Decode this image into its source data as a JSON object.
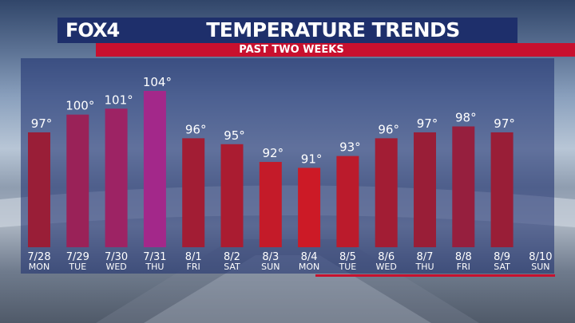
{
  "header": {
    "logo": "FOX4",
    "title": "TEMPERATURE TRENDS",
    "subtitle": "PAST TWO WEEKS"
  },
  "colors": {
    "header_bg": "#1e2f6b",
    "subtitle_bg": "#c8102e",
    "bar_heat_low": "#cc1a26",
    "bar_heat_mid": "#951e38",
    "bar_heat_high": "#a3288a"
  },
  "chart_data": {
    "type": "bar",
    "title": "TEMPERATURE TRENDS",
    "subtitle": "PAST TWO WEEKS",
    "categories": [
      "7/28",
      "7/29",
      "7/30",
      "7/31",
      "8/1",
      "8/2",
      "8/3",
      "8/4",
      "8/5",
      "8/6",
      "8/7",
      "8/8",
      "8/9",
      "8/10"
    ],
    "days": [
      "MON",
      "TUE",
      "WED",
      "THU",
      "FRI",
      "SAT",
      "SUN",
      "MON",
      "TUE",
      "WED",
      "THU",
      "FRI",
      "SAT",
      "SUN"
    ],
    "values": [
      97,
      100,
      101,
      104,
      96,
      95,
      92,
      91,
      93,
      96,
      97,
      98,
      97,
      null
    ],
    "labels": [
      "97°",
      "100°",
      "101°",
      "104°",
      "96°",
      "95°",
      "92°",
      "91°",
      "93°",
      "96°",
      "97°",
      "98°",
      "97°",
      ""
    ],
    "ylim": [
      85,
      104
    ],
    "grid": false,
    "legend": "none"
  }
}
